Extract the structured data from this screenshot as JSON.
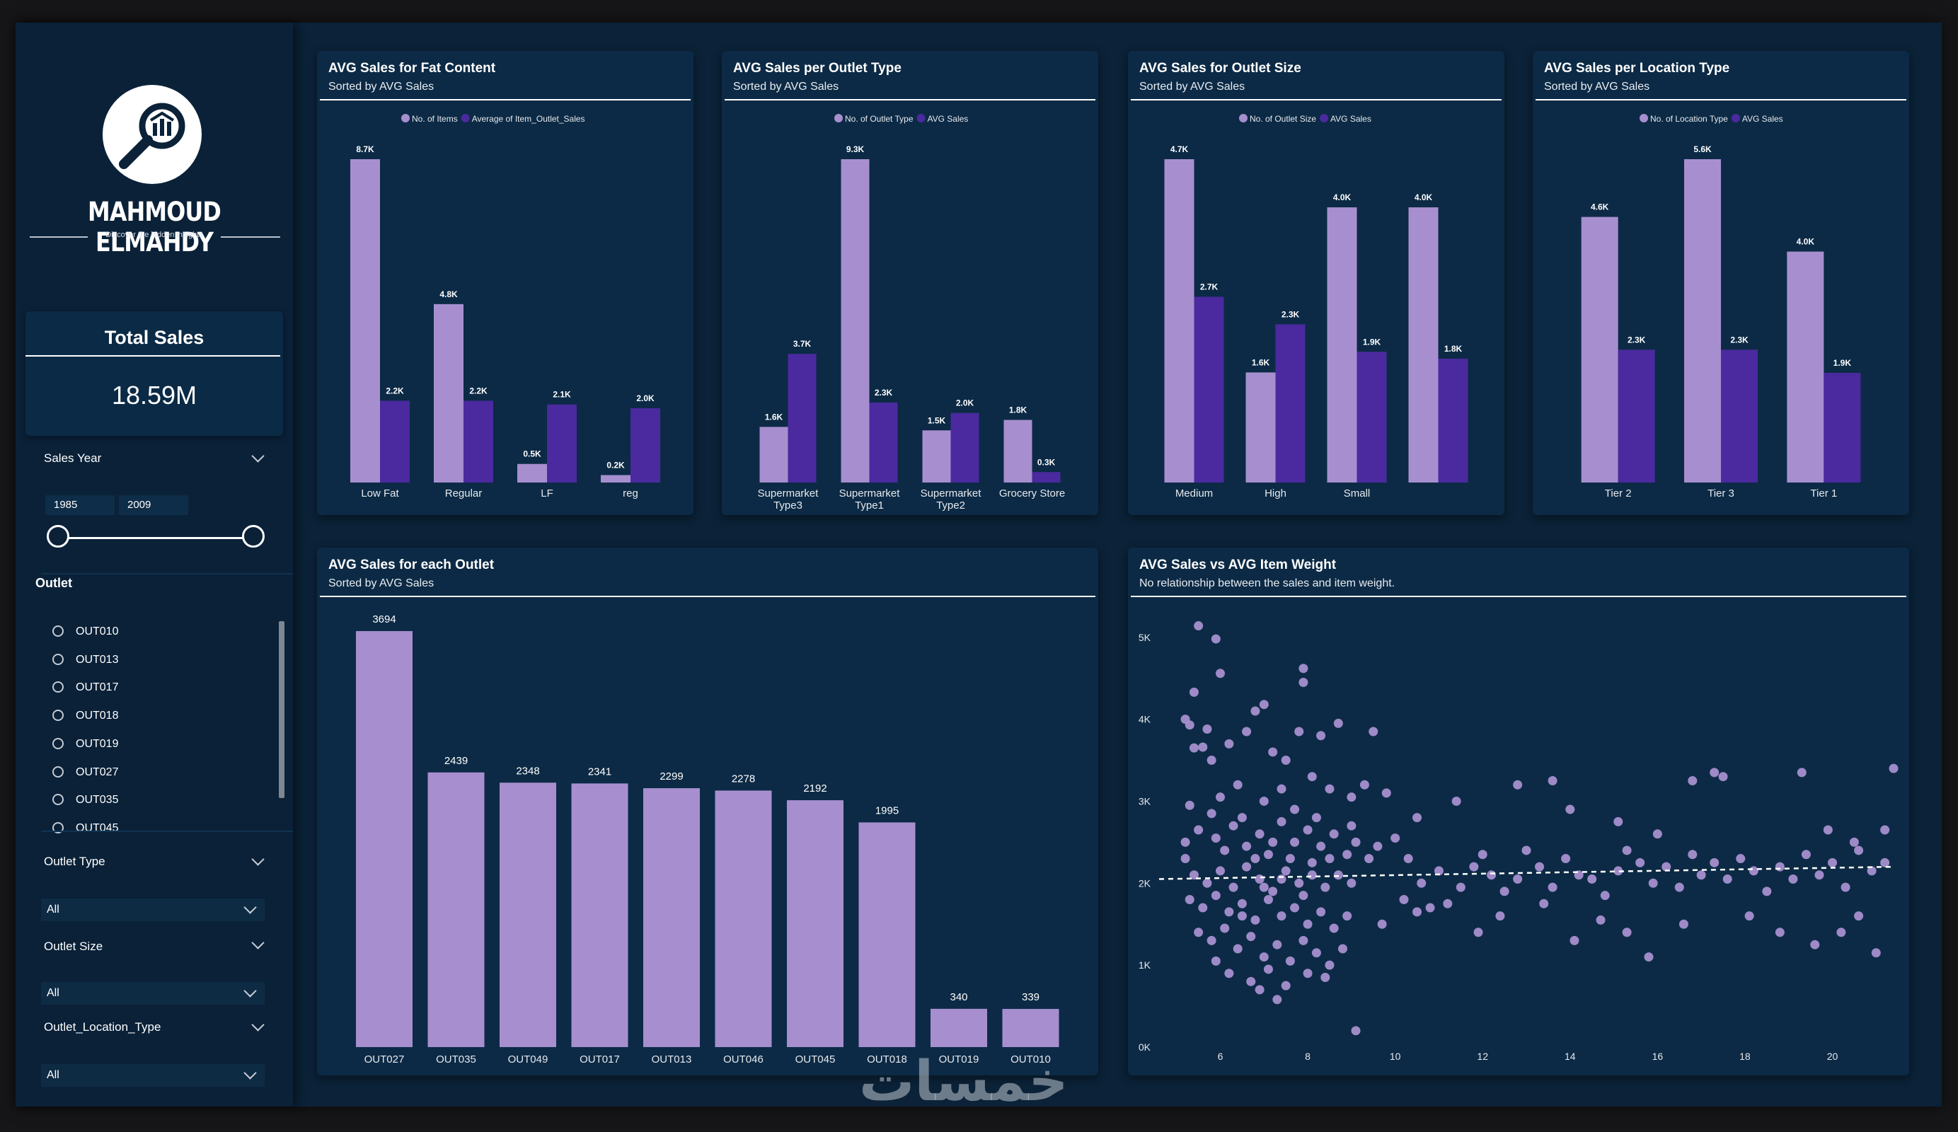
{
  "sidebar": {
    "logo_name": "MAHMOUD ELMAHDY",
    "logo_tagline": "Discover the hidden insights",
    "total_sales": {
      "title": "Total Sales",
      "value": "18.59M"
    },
    "sales_year": {
      "label": "Sales Year",
      "from": "1985",
      "to": "2009"
    },
    "outlet": {
      "label": "Outlet",
      "items": [
        "OUT010",
        "OUT013",
        "OUT017",
        "OUT018",
        "OUT019",
        "OUT027",
        "OUT035",
        "OUT045"
      ]
    },
    "outlet_type": {
      "label": "Outlet Type",
      "value": "All"
    },
    "outlet_size": {
      "label": "Outlet Size",
      "value": "All"
    },
    "outlet_location_type": {
      "label": "Outlet_Location_Type",
      "value": "All"
    }
  },
  "colors": {
    "light": "#a78fcf",
    "dark": "#4a2a9e",
    "panel": "#0c2a45",
    "background": "#0b2238"
  },
  "watermark": "خمسات",
  "chart_data": [
    {
      "id": "fat",
      "type": "bar",
      "title": "AVG Sales for Fat Content",
      "subtitle": "Sorted by AVG Sales",
      "categories": [
        "Low Fat",
        "Regular",
        "LF",
        "reg"
      ],
      "series": [
        {
          "name": "No. of Items",
          "values": [
            8700,
            4800,
            500,
            200
          ],
          "labels": [
            "8.7K",
            "4.8K",
            "0.5K",
            "0.2K"
          ]
        },
        {
          "name": "Average of Item_Outlet_Sales",
          "values": [
            2200,
            2200,
            2100,
            2000
          ],
          "labels": [
            "2.2K",
            "2.2K",
            "2.1K",
            "2.0K"
          ]
        }
      ],
      "legend": "top-center",
      "ylim": [
        0,
        8700
      ]
    },
    {
      "id": "otype",
      "type": "bar",
      "title": "AVG Sales per Outlet Type",
      "subtitle": "Sorted by AVG Sales",
      "categories": [
        [
          "Supermarket",
          "Type3"
        ],
        [
          "Supermarket",
          "Type1"
        ],
        [
          "Supermarket",
          "Type2"
        ],
        [
          "Grocery Store"
        ]
      ],
      "series": [
        {
          "name": "No. of Outlet Type",
          "values": [
            1600,
            9300,
            1500,
            1800
          ],
          "labels": [
            "1.6K",
            "9.3K",
            "1.5K",
            "1.8K"
          ]
        },
        {
          "name": "AVG Sales",
          "values": [
            3700,
            2300,
            2000,
            300
          ],
          "labels": [
            "3.7K",
            "2.3K",
            "2.0K",
            "0.3K"
          ]
        }
      ],
      "legend": "top-center",
      "ylim": [
        0,
        9300
      ]
    },
    {
      "id": "osize",
      "type": "bar",
      "title": "AVG Sales for Outlet Size",
      "subtitle": "Sorted by AVG Sales",
      "categories": [
        "Medium",
        "High",
        "Small",
        ""
      ],
      "series": [
        {
          "name": "No. of Outlet Size",
          "values": [
            4700,
            1600,
            4000,
            4000
          ],
          "labels": [
            "4.7K",
            "1.6K",
            "4.0K",
            "4.0K"
          ]
        },
        {
          "name": "AVG Sales",
          "values": [
            2700,
            2300,
            1900,
            1800
          ],
          "labels": [
            "2.7K",
            "2.3K",
            "1.9K",
            "1.8K"
          ]
        }
      ],
      "legend": "top-center",
      "ylim": [
        0,
        4700
      ]
    },
    {
      "id": "loc",
      "type": "bar",
      "title": "AVG Sales per Location Type",
      "subtitle": "Sorted by AVG Sales",
      "categories": [
        "Tier 2",
        "Tier 3",
        "Tier 1"
      ],
      "series": [
        {
          "name": "No. of Location Type",
          "values": [
            4600,
            5600,
            4000
          ],
          "labels": [
            "4.6K",
            "5.6K",
            "4.0K"
          ]
        },
        {
          "name": "AVG Sales",
          "values": [
            2300,
            2300,
            1900
          ],
          "labels": [
            "2.3K",
            "2.3K",
            "1.9K"
          ]
        }
      ],
      "legend": "top-center",
      "ylim": [
        0,
        5600
      ]
    },
    {
      "id": "outlet",
      "type": "bar",
      "title": "AVG Sales for each Outlet",
      "subtitle": "Sorted by AVG Sales",
      "categories": [
        "OUT027",
        "OUT035",
        "OUT049",
        "OUT017",
        "OUT013",
        "OUT046",
        "OUT045",
        "OUT018",
        "OUT019",
        "OUT010"
      ],
      "series": [
        {
          "values": [
            3694,
            2439,
            2348,
            2341,
            2299,
            2278,
            2192,
            1995,
            340,
            339
          ]
        }
      ],
      "ylim": [
        0,
        3694
      ]
    },
    {
      "id": "scatter",
      "type": "scatter",
      "title": "AVG Sales vs AVG Item Weight",
      "subtitle": "No relationship between the sales and item weight.",
      "x_ticks": [
        6,
        8,
        10,
        12,
        14,
        16,
        18,
        20
      ],
      "y_ticks": [
        "0K",
        "1K",
        "2K",
        "3K",
        "4K",
        "5K"
      ],
      "xlim": [
        4.6,
        21.4
      ],
      "ylim": [
        0,
        5300
      ],
      "trend": {
        "from": [
          4.6,
          2050
        ],
        "to": [
          21.4,
          2200
        ]
      },
      "points": [
        [
          5.5,
          5140
        ],
        [
          6.0,
          4560
        ],
        [
          5.9,
          4980
        ],
        [
          5.4,
          4330
        ],
        [
          5.3,
          3930
        ],
        [
          5.7,
          3880
        ],
        [
          5.2,
          4000
        ],
        [
          5.4,
          3650
        ],
        [
          5.6,
          3660
        ],
        [
          5.8,
          3500
        ],
        [
          6.2,
          3700
        ],
        [
          6.4,
          3200
        ],
        [
          6.6,
          3850
        ],
        [
          6.8,
          4100
        ],
        [
          7.0,
          4180
        ],
        [
          7.2,
          3600
        ],
        [
          7.5,
          3500
        ],
        [
          7.8,
          3850
        ],
        [
          7.9,
          4620
        ],
        [
          7.9,
          4450
        ],
        [
          8.3,
          3800
        ],
        [
          8.7,
          3950
        ],
        [
          9.0,
          3050
        ],
        [
          9.3,
          3200
        ],
        [
          9.5,
          3850
        ],
        [
          7.0,
          3000
        ],
        [
          7.4,
          3150
        ],
        [
          7.7,
          2900
        ],
        [
          8.1,
          3300
        ],
        [
          8.5,
          3150
        ],
        [
          6.5,
          2800
        ],
        [
          6.0,
          3050
        ],
        [
          5.8,
          2850
        ],
        [
          5.3,
          2950
        ],
        [
          5.2,
          2500
        ],
        [
          5.2,
          2300
        ],
        [
          5.5,
          2650
        ],
        [
          5.9,
          2550
        ],
        [
          6.3,
          2700
        ],
        [
          6.6,
          2450
        ],
        [
          6.9,
          2600
        ],
        [
          7.1,
          2350
        ],
        [
          7.4,
          2750
        ],
        [
          7.7,
          2500
        ],
        [
          8.0,
          2650
        ],
        [
          8.3,
          2450
        ],
        [
          8.6,
          2600
        ],
        [
          8.9,
          2350
        ],
        [
          9.1,
          2500
        ],
        [
          9.4,
          2300
        ],
        [
          5.4,
          2100
        ],
        [
          5.7,
          2000
        ],
        [
          6.0,
          2150
        ],
        [
          6.3,
          1950
        ],
        [
          6.6,
          2200
        ],
        [
          6.9,
          2050
        ],
        [
          7.2,
          1900
        ],
        [
          7.5,
          2150
        ],
        [
          7.8,
          2000
        ],
        [
          8.1,
          2250
        ],
        [
          8.4,
          1950
        ],
        [
          8.7,
          2100
        ],
        [
          9.0,
          2000
        ],
        [
          5.3,
          1800
        ],
        [
          5.6,
          1700
        ],
        [
          5.9,
          1850
        ],
        [
          6.2,
          1650
        ],
        [
          6.5,
          1750
        ],
        [
          6.8,
          1550
        ],
        [
          7.1,
          1800
        ],
        [
          7.4,
          1600
        ],
        [
          7.7,
          1700
        ],
        [
          8.0,
          1500
        ],
        [
          8.3,
          1650
        ],
        [
          8.6,
          1450
        ],
        [
          8.9,
          1600
        ],
        [
          5.5,
          1400
        ],
        [
          5.8,
          1300
        ],
        [
          6.1,
          1450
        ],
        [
          6.4,
          1200
        ],
        [
          6.7,
          1350
        ],
        [
          7.0,
          1100
        ],
        [
          7.3,
          1250
        ],
        [
          7.6,
          1050
        ],
        [
          7.9,
          1300
        ],
        [
          8.2,
          1150
        ],
        [
          8.5,
          1000
        ],
        [
          8.8,
          1200
        ],
        [
          6.2,
          900
        ],
        [
          6.7,
          800
        ],
        [
          7.1,
          950
        ],
        [
          7.5,
          750
        ],
        [
          8.0,
          900
        ],
        [
          8.4,
          850
        ],
        [
          9.1,
          200
        ],
        [
          6.9,
          700
        ],
        [
          7.3,
          580
        ],
        [
          5.9,
          1050
        ],
        [
          6.5,
          1600
        ],
        [
          7.2,
          2500
        ],
        [
          7.6,
          2300
        ],
        [
          8.2,
          2800
        ],
        [
          6.1,
          2400
        ],
        [
          6.8,
          2300
        ],
        [
          7.0,
          1950
        ],
        [
          7.4,
          2050
        ],
        [
          7.9,
          1850
        ],
        [
          8.1,
          2100
        ],
        [
          8.5,
          2300
        ],
        [
          9.0,
          2700
        ],
        [
          9.6,
          2450
        ],
        [
          10.0,
          2550
        ],
        [
          10.3,
          2300
        ],
        [
          10.6,
          2000
        ],
        [
          11.0,
          2150
        ],
        [
          10.2,
          1800
        ],
        [
          10.5,
          1650
        ],
        [
          11.2,
          1750
        ],
        [
          11.5,
          1950
        ],
        [
          11.8,
          2200
        ],
        [
          12.0,
          2350
        ],
        [
          12.2,
          2100
        ],
        [
          12.5,
          1900
        ],
        [
          12.8,
          2050
        ],
        [
          13.0,
          2400
        ],
        [
          13.3,
          2200
        ],
        [
          13.6,
          1950
        ],
        [
          13.9,
          2300
        ],
        [
          14.2,
          2100
        ],
        [
          14.5,
          2050
        ],
        [
          14.8,
          1850
        ],
        [
          15.1,
          2150
        ],
        [
          15.3,
          2400
        ],
        [
          15.6,
          2250
        ],
        [
          15.9,
          2000
        ],
        [
          16.2,
          2200
        ],
        [
          16.5,
          1950
        ],
        [
          16.8,
          2350
        ],
        [
          17.0,
          2100
        ],
        [
          17.3,
          2250
        ],
        [
          17.6,
          2050
        ],
        [
          17.9,
          2300
        ],
        [
          18.2,
          2150
        ],
        [
          18.5,
          1900
        ],
        [
          18.8,
          2200
        ],
        [
          19.1,
          2050
        ],
        [
          19.4,
          2350
        ],
        [
          19.7,
          2100
        ],
        [
          20.0,
          2250
        ],
        [
          20.3,
          1950
        ],
        [
          20.6,
          2400
        ],
        [
          20.9,
          2150
        ],
        [
          21.2,
          2250
        ],
        [
          11.4,
          3000
        ],
        [
          12.8,
          3200
        ],
        [
          13.6,
          3250
        ],
        [
          15.1,
          2750
        ],
        [
          16.0,
          2600
        ],
        [
          16.8,
          3250
        ],
        [
          17.3,
          3350
        ],
        [
          17.5,
          3300
        ],
        [
          19.3,
          3350
        ],
        [
          19.9,
          2650
        ],
        [
          20.5,
          2500
        ],
        [
          21.2,
          2650
        ],
        [
          21.4,
          3400
        ],
        [
          14.0,
          2900
        ],
        [
          9.8,
          3100
        ],
        [
          10.5,
          2800
        ],
        [
          12.4,
          1600
        ],
        [
          13.4,
          1750
        ],
        [
          14.1,
          1300
        ],
        [
          14.7,
          1550
        ],
        [
          15.3,
          1400
        ],
        [
          15.8,
          1100
        ],
        [
          16.6,
          1500
        ],
        [
          18.1,
          1600
        ],
        [
          18.8,
          1400
        ],
        [
          19.6,
          1250
        ],
        [
          20.2,
          1400
        ],
        [
          21.0,
          1150
        ],
        [
          20.6,
          1600
        ],
        [
          11.9,
          1400
        ],
        [
          9.7,
          1500
        ],
        [
          10.8,
          1700
        ]
      ]
    }
  ]
}
